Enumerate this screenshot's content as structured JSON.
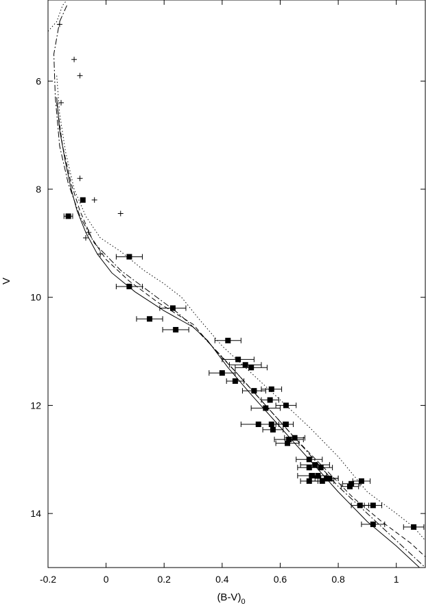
{
  "chart_data": {
    "type": "scatter",
    "title": "",
    "xlabel": "(B-V)",
    "xlabel_subscript": "0",
    "ylabel": "V",
    "xlim": [
      -0.2,
      1.1
    ],
    "ylim": [
      15,
      4.5
    ],
    "y_inverted": true,
    "grid": false,
    "legend": "none",
    "x_ticks": [
      -0.2,
      0,
      0.2,
      0.4,
      0.6,
      0.8,
      1
    ],
    "x_tick_labels": [
      "-0.2",
      "0",
      "0.2",
      "0.4",
      "0.6",
      "0.8",
      "1"
    ],
    "y_ticks": [
      6,
      8,
      10,
      12,
      14
    ],
    "y_tick_labels": [
      "6",
      "8",
      "10",
      "12",
      "14"
    ],
    "series": [
      {
        "marker": "plus",
        "points": [
          [
            -0.16,
            4.95
          ],
          [
            -0.11,
            5.6
          ],
          [
            -0.09,
            5.9
          ],
          [
            -0.155,
            6.4
          ],
          [
            -0.09,
            7.8
          ],
          [
            -0.04,
            8.2
          ],
          [
            0.05,
            8.45
          ],
          [
            -0.06,
            8.8
          ],
          [
            -0.07,
            8.9
          ],
          [
            -0.02,
            9.2
          ]
        ]
      },
      {
        "marker": "filled-square",
        "points": [
          [
            -0.08,
            8.2,
            0
          ],
          [
            -0.13,
            8.5,
            0.015
          ],
          [
            0.08,
            9.25,
            0.045
          ],
          [
            0.08,
            9.8,
            0.045
          ],
          [
            0.23,
            10.2,
            0.045
          ],
          [
            0.15,
            10.4,
            0.045
          ],
          [
            0.24,
            10.6,
            0.045
          ],
          [
            0.42,
            10.8,
            0.045
          ],
          [
            0.455,
            11.15,
            0.055
          ],
          [
            0.48,
            11.25,
            0.055
          ],
          [
            0.5,
            11.3,
            0.055
          ],
          [
            0.4,
            11.4,
            0.045
          ],
          [
            0.445,
            11.55,
            0.03
          ],
          [
            0.57,
            11.7,
            0.035
          ],
          [
            0.51,
            11.73,
            0.04
          ],
          [
            0.565,
            11.9,
            0.03
          ],
          [
            0.55,
            12.05,
            0.05
          ],
          [
            0.62,
            12.0,
            0.035
          ],
          [
            0.525,
            12.35,
            0.06
          ],
          [
            0.57,
            12.35,
            0.04
          ],
          [
            0.62,
            12.35,
            0.025
          ],
          [
            0.575,
            12.45,
            0.035
          ],
          [
            0.65,
            12.6,
            0.035
          ],
          [
            0.63,
            12.63,
            0.05
          ],
          [
            0.625,
            12.7,
            0.04
          ],
          [
            0.7,
            13.0,
            0.045
          ],
          [
            0.7,
            13.15,
            0.04
          ],
          [
            0.72,
            13.1,
            0.05
          ],
          [
            0.74,
            13.15,
            0.04
          ],
          [
            0.71,
            13.3,
            0.05
          ],
          [
            0.73,
            13.3,
            0.03
          ],
          [
            0.76,
            13.35,
            0.04
          ],
          [
            0.77,
            13.35,
            0.03
          ],
          [
            0.745,
            13.4,
            0.04
          ],
          [
            0.7,
            13.4,
            0.03
          ],
          [
            0.88,
            13.4,
            0.03
          ],
          [
            0.845,
            13.45,
            0.03
          ],
          [
            0.84,
            13.5,
            0.03
          ],
          [
            0.875,
            13.85,
            0.03
          ],
          [
            0.92,
            13.85,
            0.03
          ],
          [
            0.92,
            14.2,
            0.04
          ],
          [
            1.06,
            14.25,
            0.035
          ]
        ]
      }
    ],
    "curves": [
      {
        "style": "solid",
        "points": [
          [
            -0.17,
            6.3
          ],
          [
            -0.16,
            6.9
          ],
          [
            -0.14,
            7.5
          ],
          [
            -0.12,
            8.0
          ],
          [
            -0.1,
            8.4
          ],
          [
            -0.07,
            8.8
          ],
          [
            -0.03,
            9.2
          ],
          [
            0.02,
            9.55
          ],
          [
            0.1,
            9.9
          ],
          [
            0.2,
            10.25
          ],
          [
            0.3,
            10.55
          ],
          [
            0.35,
            10.8
          ],
          [
            0.42,
            11.3
          ],
          [
            0.5,
            11.8
          ],
          [
            0.6,
            12.4
          ],
          [
            0.7,
            13.0
          ],
          [
            0.8,
            13.6
          ],
          [
            0.9,
            14.15
          ],
          [
            1.0,
            14.6
          ],
          [
            1.08,
            15.0
          ]
        ]
      },
      {
        "style": "dashed",
        "points": [
          [
            -0.17,
            6.4
          ],
          [
            -0.15,
            7.2
          ],
          [
            -0.12,
            7.9
          ],
          [
            -0.09,
            8.4
          ],
          [
            -0.05,
            8.9
          ],
          [
            0.0,
            9.3
          ],
          [
            0.08,
            9.7
          ],
          [
            0.18,
            10.1
          ],
          [
            0.3,
            10.5
          ],
          [
            0.38,
            11.0
          ],
          [
            0.45,
            11.4
          ],
          [
            0.55,
            12.0
          ],
          [
            0.65,
            12.6
          ],
          [
            0.75,
            13.15
          ],
          [
            0.85,
            13.7
          ],
          [
            0.95,
            14.15
          ],
          [
            1.05,
            14.55
          ],
          [
            1.1,
            14.8
          ]
        ]
      },
      {
        "style": "dot-dash",
        "points": [
          [
            -0.135,
            4.6
          ],
          [
            -0.16,
            4.9
          ],
          [
            -0.18,
            5.5
          ],
          [
            -0.175,
            6.3
          ],
          [
            -0.16,
            7.2
          ],
          [
            -0.13,
            7.9
          ],
          [
            -0.09,
            8.5
          ],
          [
            -0.04,
            9.0
          ],
          [
            0.05,
            9.5
          ],
          [
            0.15,
            9.9
          ],
          [
            0.25,
            10.3
          ],
          [
            0.32,
            10.65
          ],
          [
            0.4,
            11.1
          ],
          [
            0.5,
            11.7
          ],
          [
            0.6,
            12.3
          ],
          [
            0.7,
            12.9
          ],
          [
            0.8,
            13.5
          ],
          [
            0.9,
            14.0
          ],
          [
            1.0,
            14.5
          ],
          [
            1.1,
            15.0
          ]
        ]
      },
      {
        "style": "dotted",
        "points": [
          [
            -0.17,
            5.9
          ],
          [
            -0.16,
            6.6
          ],
          [
            -0.14,
            7.3
          ],
          [
            -0.11,
            8.0
          ],
          [
            -0.07,
            8.5
          ],
          [
            -0.02,
            8.9
          ],
          [
            0.05,
            9.15
          ],
          [
            0.13,
            9.5
          ],
          [
            0.2,
            9.75
          ],
          [
            0.26,
            10.0
          ],
          [
            0.32,
            10.4
          ],
          [
            0.4,
            10.9
          ],
          [
            0.5,
            11.4
          ],
          [
            0.6,
            11.9
          ],
          [
            0.7,
            12.4
          ],
          [
            0.8,
            12.95
          ],
          [
            0.9,
            13.6
          ],
          [
            1.0,
            14.0
          ],
          [
            1.06,
            14.25
          ],
          [
            1.1,
            14.5
          ]
        ]
      },
      {
        "style": "dotted",
        "points": [
          [
            -0.2,
            5.08
          ],
          [
            -0.17,
            4.9
          ],
          [
            -0.15,
            4.6
          ],
          [
            -0.135,
            4.5
          ]
        ]
      }
    ]
  }
}
